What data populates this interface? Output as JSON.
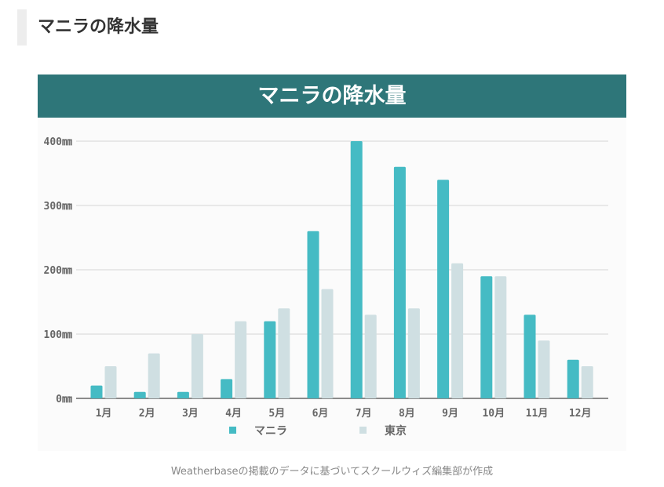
{
  "heading": "マニラの降水量",
  "caption": "Weatherbaseの掲載のデータに基づいてスクールウィズ編集部が作成",
  "chart_data": {
    "type": "bar",
    "title": "マニラの降水量",
    "categories": [
      "1月",
      "2月",
      "3月",
      "4月",
      "5月",
      "6月",
      "7月",
      "8月",
      "9月",
      "10月",
      "11月",
      "12月"
    ],
    "series": [
      {
        "name": "マニラ",
        "color": "#45bbc4",
        "values": [
          20,
          10,
          10,
          30,
          120,
          260,
          400,
          360,
          340,
          190,
          130,
          60
        ]
      },
      {
        "name": "東京",
        "color": "#cfdfe2",
        "values": [
          50,
          70,
          100,
          120,
          140,
          170,
          130,
          140,
          210,
          190,
          90,
          50
        ]
      }
    ],
    "yticks": [
      "0㎜",
      "100㎜",
      "200㎜",
      "300㎜",
      "400㎜"
    ],
    "ylim": [
      0,
      400
    ],
    "grid": true,
    "legend": "bottom"
  }
}
